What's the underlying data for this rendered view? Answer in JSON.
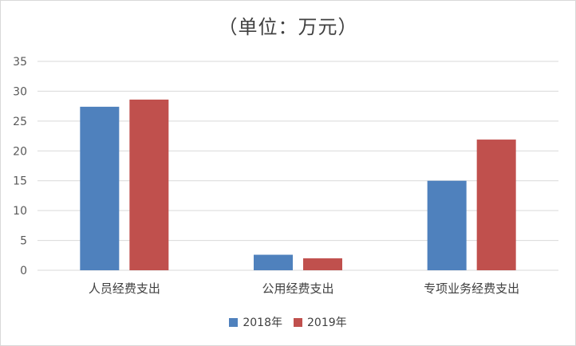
{
  "chart_data": {
    "type": "bar",
    "title": "（单位：万元）",
    "categories": [
      "人员经费支出",
      "公用经费支出",
      "专项业务经费支出"
    ],
    "series": [
      {
        "name": "2018年",
        "color": "#4f81bd",
        "values": [
          27.4,
          2.6,
          15.0
        ]
      },
      {
        "name": "2019年",
        "color": "#c0504d",
        "values": [
          28.6,
          2.0,
          21.9
        ]
      }
    ],
    "yticks": [
      0,
      5,
      10,
      15,
      20,
      25,
      30,
      35
    ],
    "ylim": [
      0,
      35
    ],
    "grid": true,
    "legend_position": "bottom",
    "xlabel": "",
    "ylabel": ""
  }
}
